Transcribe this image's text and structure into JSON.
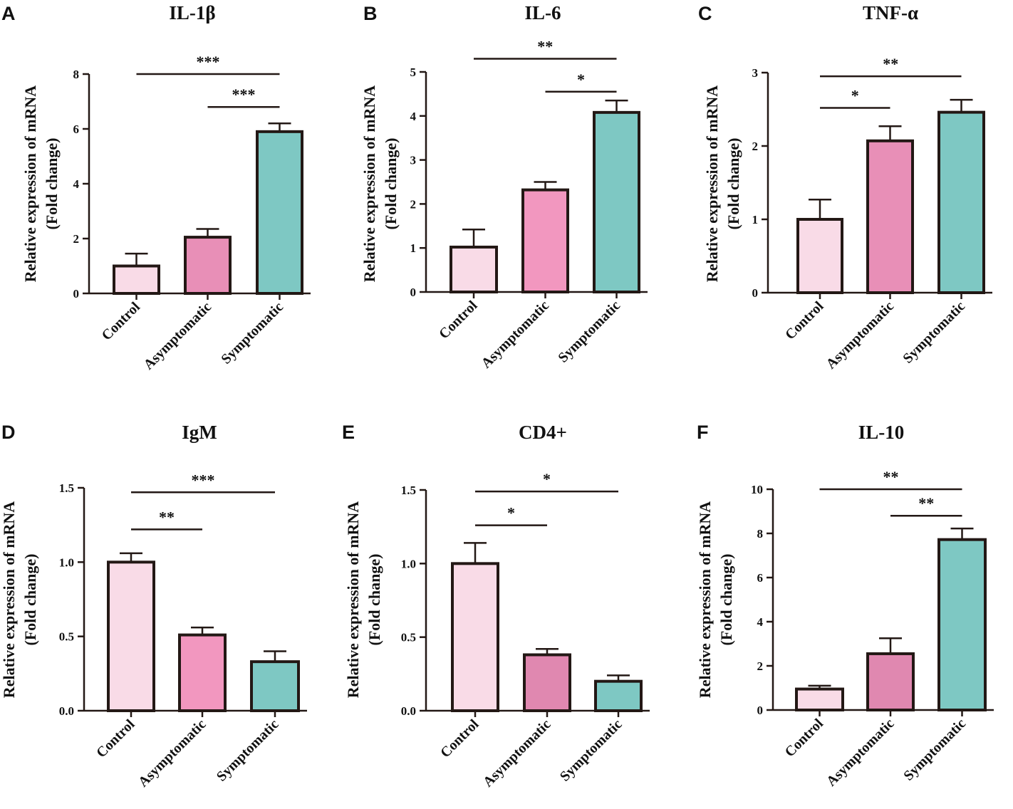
{
  "chart_data": [
    {
      "panel": "A",
      "type": "bar",
      "title": "IL-1β",
      "ylabel": [
        "Relative expression of mRNA",
        "(Fold change)"
      ],
      "categories": [
        "Control",
        "Asymptomatic",
        "Symptomatic"
      ],
      "values": [
        1.0,
        2.05,
        5.9
      ],
      "errors": [
        0.45,
        0.3,
        0.3
      ],
      "ylim": [
        0,
        8
      ],
      "yticks": [
        "0",
        "2",
        "4",
        "6",
        "8"
      ],
      "colors": [
        "#f9dbe7",
        "#e88fb7",
        "#7ec8c3"
      ],
      "significance": [
        {
          "from": 0,
          "to": 2,
          "label": "***",
          "level": 8.0
        },
        {
          "from": 1,
          "to": 2,
          "label": "***",
          "level": 6.8
        }
      ]
    },
    {
      "panel": "B",
      "type": "bar",
      "title": "IL-6",
      "ylabel": [
        "Relative expression of mRNA",
        "(Fold change)"
      ],
      "categories": [
        "Control",
        "Asymptomatic",
        "Symptomatic"
      ],
      "values": [
        1.02,
        2.32,
        4.08
      ],
      "errors": [
        0.4,
        0.18,
        0.27
      ],
      "ylim": [
        0,
        5
      ],
      "yticks": [
        "0",
        "1",
        "2",
        "3",
        "4",
        "5"
      ],
      "colors": [
        "#f9dbe7",
        "#f297bf",
        "#7ec8c3"
      ],
      "significance": [
        {
          "from": 0,
          "to": 2,
          "label": "**",
          "level": 5.3
        },
        {
          "from": 1,
          "to": 2,
          "label": "*",
          "level": 4.55
        }
      ]
    },
    {
      "panel": "C",
      "type": "bar",
      "title": "TNF-α",
      "ylabel": [
        "Relative expression of mRNA",
        "(Fold change)"
      ],
      "categories": [
        "Control",
        "Asymptomatic",
        "Symptomatic"
      ],
      "values": [
        1.0,
        2.07,
        2.46
      ],
      "errors": [
        0.27,
        0.2,
        0.17
      ],
      "ylim": [
        0,
        3
      ],
      "yticks": [
        "0",
        "1",
        "2",
        "3"
      ],
      "colors": [
        "#f9dbe7",
        "#e88fb7",
        "#7ec8c3"
      ],
      "significance": [
        {
          "from": 0,
          "to": 2,
          "label": "**",
          "level": 2.95
        },
        {
          "from": 0,
          "to": 1,
          "label": "*",
          "level": 2.52
        }
      ]
    },
    {
      "panel": "D",
      "type": "bar",
      "title": "IgM",
      "ylabel": [
        "Relative expression of mRNA",
        "(Fold change)"
      ],
      "categories": [
        "Control",
        "Asymptomatic",
        "Symptomatic"
      ],
      "values": [
        1.0,
        0.51,
        0.33
      ],
      "errors": [
        0.06,
        0.05,
        0.07
      ],
      "ylim": [
        0,
        1.5
      ],
      "yticks": [
        "0.0",
        "0.5",
        "1.0",
        "1.5"
      ],
      "colors": [
        "#f9dbe7",
        "#f297bf",
        "#7ec8c3"
      ],
      "significance": [
        {
          "from": 0,
          "to": 2,
          "label": "***",
          "level": 1.47
        },
        {
          "from": 0,
          "to": 1,
          "label": "**",
          "level": 1.22
        }
      ]
    },
    {
      "panel": "E",
      "type": "bar",
      "title": "CD4+",
      "ylabel": [
        "Relative expression of mRNA",
        "(Fold change)"
      ],
      "categories": [
        "Control",
        "Asymptomatic",
        "Symptomatic"
      ],
      "values": [
        1.0,
        0.38,
        0.2
      ],
      "errors": [
        0.14,
        0.04,
        0.04
      ],
      "ylim": [
        0,
        1.5
      ],
      "yticks": [
        "0.0",
        "0.5",
        "1.0",
        "1.5"
      ],
      "colors": [
        "#f9dbe7",
        "#e088b0",
        "#7ec8c3"
      ],
      "significance": [
        {
          "from": 0,
          "to": 2,
          "label": "*",
          "level": 1.49
        },
        {
          "from": 0,
          "to": 1,
          "label": "*",
          "level": 1.26
        }
      ]
    },
    {
      "panel": "F",
      "type": "bar",
      "title": "IL-10",
      "ylabel": [
        "Relative expression of mRNA",
        "(Fold change)"
      ],
      "categories": [
        "Control",
        "Asymptomatic",
        "Symptomatic"
      ],
      "values": [
        0.95,
        2.55,
        7.72
      ],
      "errors": [
        0.15,
        0.7,
        0.5
      ],
      "ylim": [
        0,
        10
      ],
      "yticks": [
        "0",
        "2",
        "4",
        "6",
        "8",
        "10"
      ],
      "colors": [
        "#f9dbe7",
        "#e088b0",
        "#7ec8c3"
      ],
      "significance": [
        {
          "from": 0,
          "to": 2,
          "label": "**",
          "level": 10.0
        },
        {
          "from": 1,
          "to": 2,
          "label": "**",
          "level": 8.8
        }
      ]
    }
  ]
}
